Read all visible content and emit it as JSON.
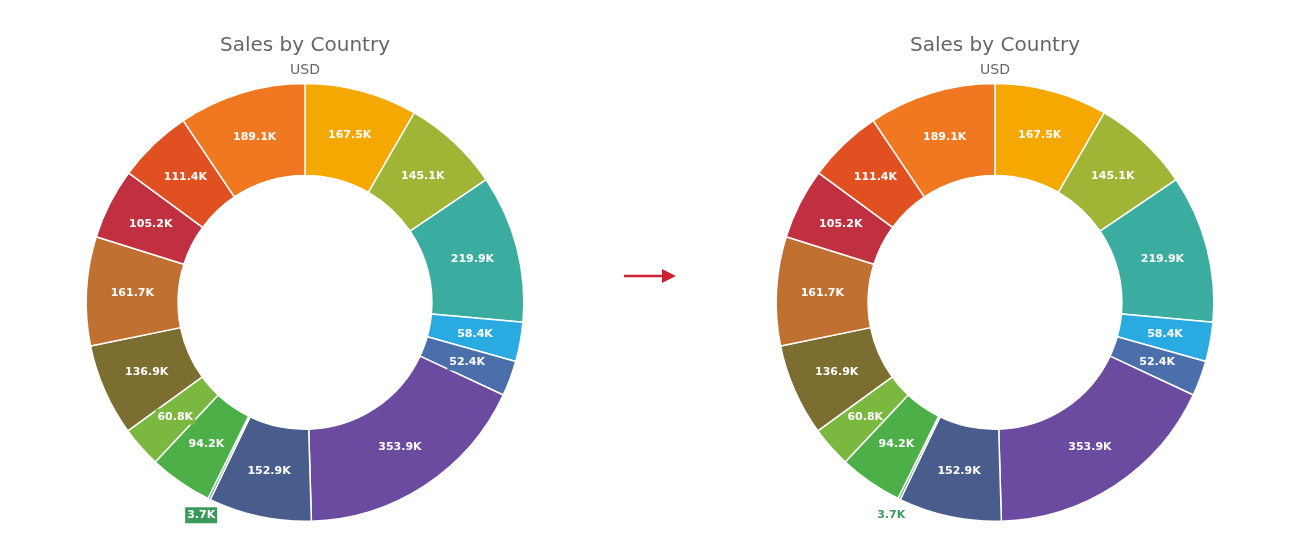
{
  "chart_data": [
    {
      "type": "doughnut",
      "title": "Sales by Country",
      "subtitle": "USD",
      "values": [
        167.5,
        145.1,
        219.9,
        58.4,
        52.4,
        353.9,
        152.9,
        3.7,
        94.2,
        60.8,
        136.9,
        161.7,
        105.2,
        111.4,
        189.1
      ],
      "value_labels": [
        "167.5K",
        "145.1K",
        "219.9K",
        "58.4K",
        "52.4K",
        "353.9K",
        "152.9K",
        "3.7K",
        "94.2K",
        "60.8K",
        "136.9K",
        "161.7K",
        "105.2K",
        "111.4K",
        "189.1K"
      ],
      "colors": [
        "#F5A800",
        "#A0B435",
        "#3AADA0",
        "#29ABE2",
        "#4B6FAB",
        "#6B4BA0",
        "#485D8C",
        "#3A9A5C",
        "#4DAF48",
        "#7BB840",
        "#7B6E30",
        "#C07030",
        "#C03040",
        "#E05020",
        "#F07820"
      ],
      "data_labels": true
    },
    {
      "type": "doughnut",
      "title": "Sales by Country",
      "subtitle": "USD",
      "values": [
        167.5,
        145.1,
        219.9,
        58.4,
        52.4,
        353.9,
        152.9,
        3.7,
        94.2,
        60.8,
        136.9,
        161.7,
        105.2,
        111.4,
        189.1
      ],
      "value_labels": [
        "167.5K",
        "145.1K",
        "219.9K",
        "58.4K",
        "52.4K",
        "353.9K",
        "152.9K",
        "3.7K",
        "94.2K",
        "60.8K",
        "136.9K",
        "161.7K",
        "105.2K",
        "111.4K",
        "189.1K"
      ],
      "colors": [
        "#F5A800",
        "#A0B435",
        "#3AADA0",
        "#29ABE2",
        "#4B6FAB",
        "#6B4BA0",
        "#485D8C",
        "#3A9A5C",
        "#4DAF48",
        "#7BB840",
        "#7B6E30",
        "#C07030",
        "#C03040",
        "#E05020",
        "#F07820"
      ],
      "data_labels": true
    }
  ]
}
